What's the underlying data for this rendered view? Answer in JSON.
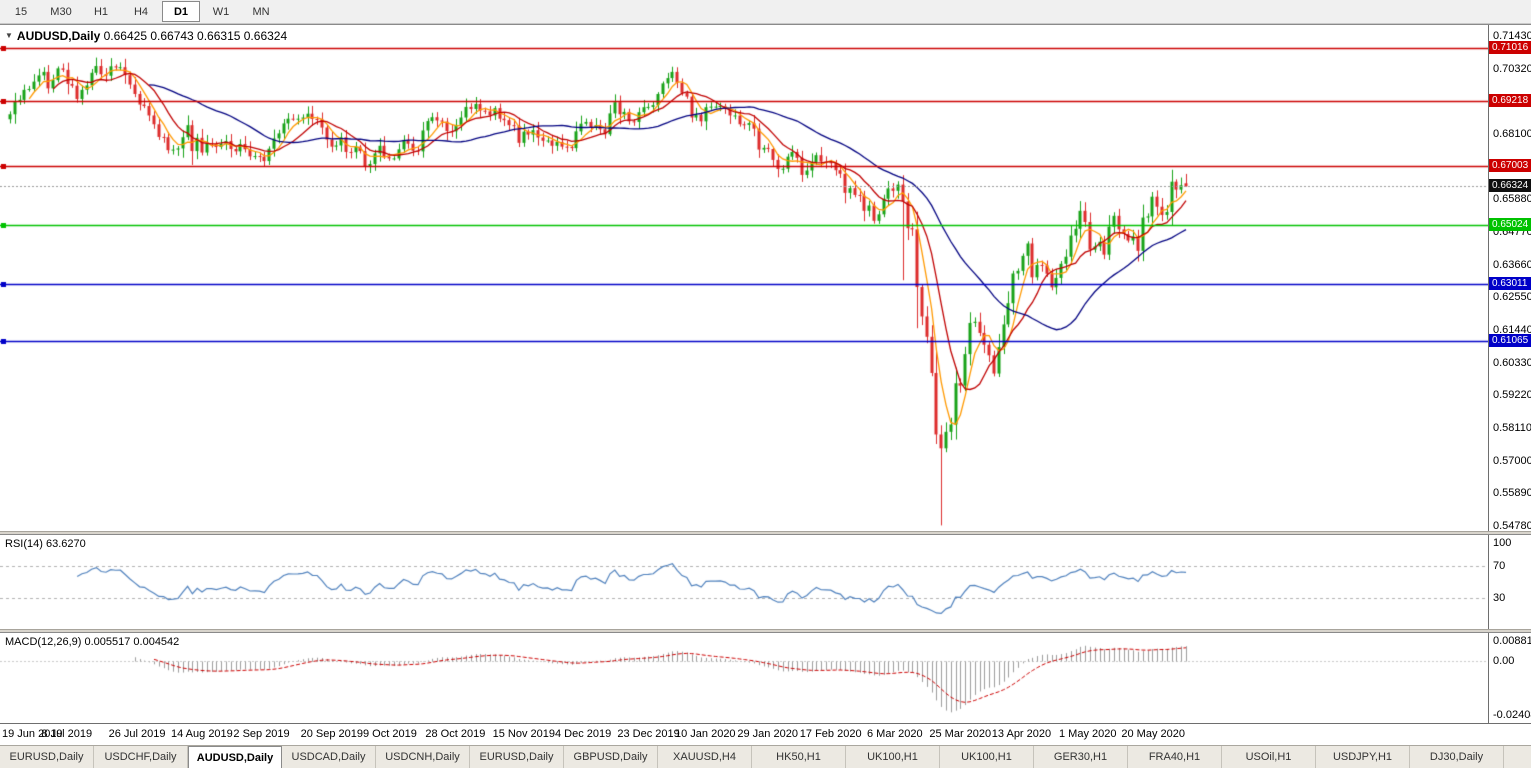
{
  "toolbar": {
    "timeframes": [
      "15",
      "M30",
      "H1",
      "H4",
      "D1",
      "W1",
      "MN"
    ],
    "active": "D1"
  },
  "chart": {
    "symbol_label": "AUDUSD,Daily",
    "legend_values": "0.66425 0.66743 0.66315 0.66324",
    "dropdown_glyph": "▼",
    "current_price": "0.66324",
    "levels": [
      {
        "value": 0.71016,
        "label": "0.71016",
        "color": "#cc0000"
      },
      {
        "value": 0.69218,
        "label": "0.69218",
        "color": "#cc0000"
      },
      {
        "value": 0.67003,
        "label": "0.67003",
        "color": "#cc0000"
      },
      {
        "value": 0.65024,
        "label": "0.65024",
        "color": "#00c200"
      },
      {
        "value": 0.63011,
        "label": "0.63011",
        "color": "#0000c8"
      },
      {
        "value": 0.61065,
        "label": "0.61065",
        "color": "#0000c8"
      }
    ],
    "y_axis": {
      "max": 0.7143,
      "min": 0.5478,
      "labels": [
        "0.71430",
        "0.70320",
        "0.69210",
        "0.68100",
        "0.66990",
        "0.65880",
        "0.64770",
        "0.63660",
        "0.62550",
        "0.61440",
        "0.60330",
        "0.59220",
        "0.58110",
        "0.57000",
        "0.55890",
        "0.54780"
      ]
    }
  },
  "colors": {
    "up_candle": "#18a318",
    "down_candle": "#dd2c2c",
    "ma_fast": "#ff9900",
    "ma_mid": "#c00000",
    "ma_slow": "#000080",
    "rsi_line": "#4f81bd",
    "rsi_guides": "#b0b0b0",
    "macd_hist": "#9c9c9c",
    "macd_signal": "#cc0000",
    "price_badge": "#101010",
    "price_line": "#9a9a9a"
  },
  "chart_data": {
    "type": "candlestick",
    "symbol": "AUDUSD",
    "timeframe": "Daily",
    "first_open": 0.686,
    "closes": [
      0.6877,
      0.6922,
      0.6926,
      0.696,
      0.6963,
      0.6988,
      0.7009,
      0.7021,
      0.6965,
      0.6993,
      0.7033,
      0.7028,
      0.698,
      0.6974,
      0.6929,
      0.696,
      0.6975,
      0.7018,
      0.7041,
      0.7013,
      0.7008,
      0.704,
      0.7036,
      0.7037,
      0.701,
      0.6978,
      0.6946,
      0.691,
      0.6905,
      0.6873,
      0.6843,
      0.68,
      0.6799,
      0.6755,
      0.6757,
      0.6761,
      0.6799,
      0.684,
      0.6752,
      0.6797,
      0.6747,
      0.6779,
      0.6777,
      0.6766,
      0.6777,
      0.6786,
      0.6759,
      0.6751,
      0.6776,
      0.6758,
      0.6734,
      0.6735,
      0.6733,
      0.6718,
      0.676,
      0.6795,
      0.6812,
      0.6846,
      0.6862,
      0.6861,
      0.6862,
      0.6866,
      0.6879,
      0.6861,
      0.686,
      0.6832,
      0.6791,
      0.6767,
      0.6771,
      0.6799,
      0.6749,
      0.6748,
      0.6767,
      0.6752,
      0.67,
      0.6708,
      0.6744,
      0.677,
      0.6733,
      0.6727,
      0.6727,
      0.6758,
      0.679,
      0.6777,
      0.6753,
      0.6751,
      0.6822,
      0.6854,
      0.6867,
      0.6856,
      0.6852,
      0.682,
      0.6819,
      0.6841,
      0.6866,
      0.6902,
      0.6895,
      0.6912,
      0.6889,
      0.6887,
      0.6873,
      0.6898,
      0.6862,
      0.6857,
      0.684,
      0.6838,
      0.678,
      0.6818,
      0.6808,
      0.6823,
      0.6798,
      0.6787,
      0.6788,
      0.677,
      0.6783,
      0.6767,
      0.6766,
      0.6762,
      0.6819,
      0.6845,
      0.6851,
      0.6833,
      0.684,
      0.6826,
      0.6809,
      0.688,
      0.6918,
      0.6877,
      0.6885,
      0.6853,
      0.6851,
      0.6884,
      0.6901,
      0.6902,
      0.6908,
      0.6946,
      0.6982,
      0.7,
      0.7021,
      0.6984,
      0.695,
      0.6937,
      0.6866,
      0.6875,
      0.6853,
      0.6901,
      0.6903,
      0.6903,
      0.6905,
      0.6896,
      0.6873,
      0.6873,
      0.6843,
      0.6841,
      0.6847,
      0.6828,
      0.6757,
      0.6763,
      0.6759,
      0.6722,
      0.6691,
      0.6692,
      0.6733,
      0.6749,
      0.6729,
      0.6671,
      0.6686,
      0.6715,
      0.6738,
      0.6716,
      0.6714,
      0.6712,
      0.6687,
      0.6675,
      0.661,
      0.6626,
      0.6603,
      0.6601,
      0.6549,
      0.6567,
      0.6515,
      0.6537,
      0.659,
      0.6625,
      0.6617,
      0.6638,
      0.6581,
      0.649,
      0.6486,
      0.629,
      0.619,
      0.6121,
      0.5998,
      0.5789,
      0.5742,
      0.5798,
      0.5823,
      0.5963,
      0.5955,
      0.6062,
      0.6168,
      0.6172,
      0.6134,
      0.6094,
      0.6058,
      0.5996,
      0.6086,
      0.6163,
      0.6235,
      0.6336,
      0.6345,
      0.6396,
      0.6438,
      0.6323,
      0.6365,
      0.6364,
      0.6335,
      0.6289,
      0.6321,
      0.6369,
      0.6393,
      0.6465,
      0.6488,
      0.6549,
      0.6511,
      0.6417,
      0.6428,
      0.6444,
      0.64,
      0.6495,
      0.6532,
      0.6486,
      0.647,
      0.6448,
      0.6462,
      0.6413,
      0.6526,
      0.653,
      0.6597,
      0.6563,
      0.6535,
      0.6545,
      0.6648,
      0.6621,
      0.6636,
      0.66324
    ],
    "last_candle": {
      "open": 0.66425,
      "high": 0.66743,
      "low": 0.66315,
      "close": 0.66324
    },
    "wick_overrides": [
      {
        "index": 186,
        "low": 0.6313
      },
      {
        "index": 189,
        "low": 0.615
      },
      {
        "index": 194,
        "low": 0.548
      }
    ],
    "x_ticks": [
      {
        "index": 0,
        "label": "19 Jun 2019"
      },
      {
        "index": 13,
        "label": "8 Jul 2019"
      },
      {
        "index": 27,
        "label": "26 Jul 2019"
      },
      {
        "index": 40,
        "label": "14 Aug 2019"
      },
      {
        "index": 53,
        "label": "2 Sep 2019"
      },
      {
        "index": 67,
        "label": "20 Sep 2019"
      },
      {
        "index": 80,
        "label": "9 Oct 2019"
      },
      {
        "index": 93,
        "label": "28 Oct 2019"
      },
      {
        "index": 107,
        "label": "15 Nov 2019"
      },
      {
        "index": 120,
        "label": "4 Dec 2019"
      },
      {
        "index": 133,
        "label": "23 Dec 2019"
      },
      {
        "index": 145,
        "label": "10 Jan 2020"
      },
      {
        "index": 158,
        "label": "29 Jan 2020"
      },
      {
        "index": 171,
        "label": "17 Feb 2020"
      },
      {
        "index": 185,
        "label": "6 Mar 2020"
      },
      {
        "index": 198,
        "label": "25 Mar 2020"
      },
      {
        "index": 211,
        "label": "13 Apr 2020"
      },
      {
        "index": 225,
        "label": "1 May 2020"
      },
      {
        "index": 238,
        "label": "20 May 2020"
      }
    ],
    "moving_averages": [
      {
        "period": 5,
        "color": "#ff9900"
      },
      {
        "period": 10,
        "color": "#c00000"
      },
      {
        "period": 30,
        "color": "#000080"
      }
    ],
    "rsi": {
      "label": "RSI(14) 63.6270",
      "period": 14,
      "guide_levels": [
        70,
        30
      ],
      "axis_labels": [
        "100",
        "70",
        "30"
      ]
    },
    "macd": {
      "label": "MACD(12,26,9) 0.005517 0.004542",
      "fast": 12,
      "slow": 26,
      "signal": 9,
      "axis_max": 0.008815,
      "axis_min": -0.02408,
      "axis_labels": [
        "0.008815",
        "0.00",
        "-0.02408"
      ]
    }
  },
  "tabs": {
    "items": [
      "EURUSD,Daily",
      "USDCHF,Daily",
      "AUDUSD,Daily",
      "USDCAD,Daily",
      "USDCNH,Daily",
      "EURUSD,Daily",
      "GBPUSD,Daily",
      "XAUUSD,H4",
      "HK50,H1",
      "UK100,H1",
      "UK100,H1",
      "GER30,H1",
      "FRA40,H1",
      "USOil,H1",
      "USDJPY,H1",
      "DJ30,Daily"
    ],
    "active_index": 2
  }
}
